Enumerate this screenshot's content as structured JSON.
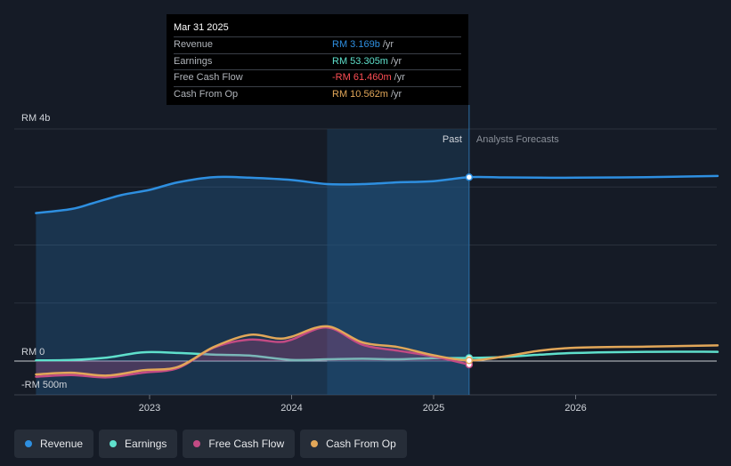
{
  "chart_data": {
    "type": "line",
    "y_label_top": "RM 4b",
    "y_label_zero": "RM 0",
    "y_label_bottom": "-RM 500m",
    "ylim_millions": [
      -500,
      4000
    ],
    "x_ticks": [
      {
        "label": "2023",
        "t": 2023.0
      },
      {
        "label": "2024",
        "t": 2024.0
      },
      {
        "label": "2025",
        "t": 2025.0
      },
      {
        "label": "2026",
        "t": 2026.0
      }
    ],
    "past_label": "Past",
    "forecast_label": "Analysts Forecasts",
    "past_end": 2025.25,
    "forecast_shade_start": 2024.25,
    "series": [
      {
        "name": "Revenue",
        "color": "#2e8fe0",
        "fill": true,
        "x": [
          2022.2,
          2022.45,
          2022.6,
          2022.8,
          2023.0,
          2023.2,
          2023.45,
          2023.7,
          2024.0,
          2024.25,
          2024.5,
          2024.75,
          2025.0,
          2025.25,
          2025.5,
          2025.75,
          2026.0,
          2026.5,
          2027.0
        ],
        "values": [
          2550,
          2620,
          2720,
          2860,
          2950,
          3080,
          3170,
          3160,
          3120,
          3050,
          3050,
          3080,
          3100,
          3169,
          3165,
          3160,
          3160,
          3170,
          3190
        ]
      },
      {
        "name": "Earnings",
        "color": "#5fe0cc",
        "fill": false,
        "x": [
          2022.2,
          2022.45,
          2022.7,
          2022.95,
          2023.2,
          2023.45,
          2023.7,
          2024.0,
          2024.25,
          2024.5,
          2024.75,
          2025.0,
          2025.25,
          2025.5,
          2025.75,
          2026.0,
          2026.5,
          2027.0
        ],
        "values": [
          10,
          20,
          60,
          150,
          140,
          110,
          95,
          20,
          30,
          40,
          30,
          50,
          53,
          70,
          110,
          140,
          160,
          160
        ]
      },
      {
        "name": "Free Cash Flow",
        "color": "#c34b84",
        "fill": true,
        "x": [
          2022.2,
          2022.45,
          2022.7,
          2022.95,
          2023.2,
          2023.45,
          2023.7,
          2023.9,
          2024.0,
          2024.25,
          2024.5,
          2024.75,
          2025.0,
          2025.25
        ],
        "values": [
          -270,
          -240,
          -280,
          -200,
          -120,
          230,
          370,
          330,
          370,
          580,
          280,
          180,
          80,
          -61
        ]
      },
      {
        "name": "Cash From Op",
        "color": "#e2a759",
        "fill": false,
        "x": [
          2022.2,
          2022.45,
          2022.7,
          2022.95,
          2023.2,
          2023.45,
          2023.7,
          2023.9,
          2024.0,
          2024.25,
          2024.5,
          2024.75,
          2025.0,
          2025.25,
          2025.5,
          2025.75,
          2026.0,
          2026.5,
          2027.0
        ],
        "values": [
          -230,
          -200,
          -250,
          -160,
          -100,
          240,
          450,
          390,
          420,
          600,
          320,
          240,
          100,
          11,
          80,
          180,
          230,
          250,
          270
        ]
      }
    ]
  },
  "tooltip": {
    "date": "Mar 31 2025",
    "rows": [
      {
        "label": "Revenue",
        "value": "RM 3.169b",
        "unit": "/yr",
        "color": "#2e8fe0"
      },
      {
        "label": "Earnings",
        "value": "RM 53.305m",
        "unit": "/yr",
        "color": "#5fe0cc"
      },
      {
        "label": "Free Cash Flow",
        "value": "-RM 61.460m",
        "unit": "/yr",
        "color": "#ff4f55"
      },
      {
        "label": "Cash From Op",
        "value": "RM 10.562m",
        "unit": "/yr",
        "color": "#e2a759"
      }
    ]
  },
  "legend": [
    {
      "label": "Revenue",
      "color": "#2e8fe0"
    },
    {
      "label": "Earnings",
      "color": "#5fe0cc"
    },
    {
      "label": "Free Cash Flow",
      "color": "#c34b84"
    },
    {
      "label": "Cash From Op",
      "color": "#e2a759"
    }
  ]
}
